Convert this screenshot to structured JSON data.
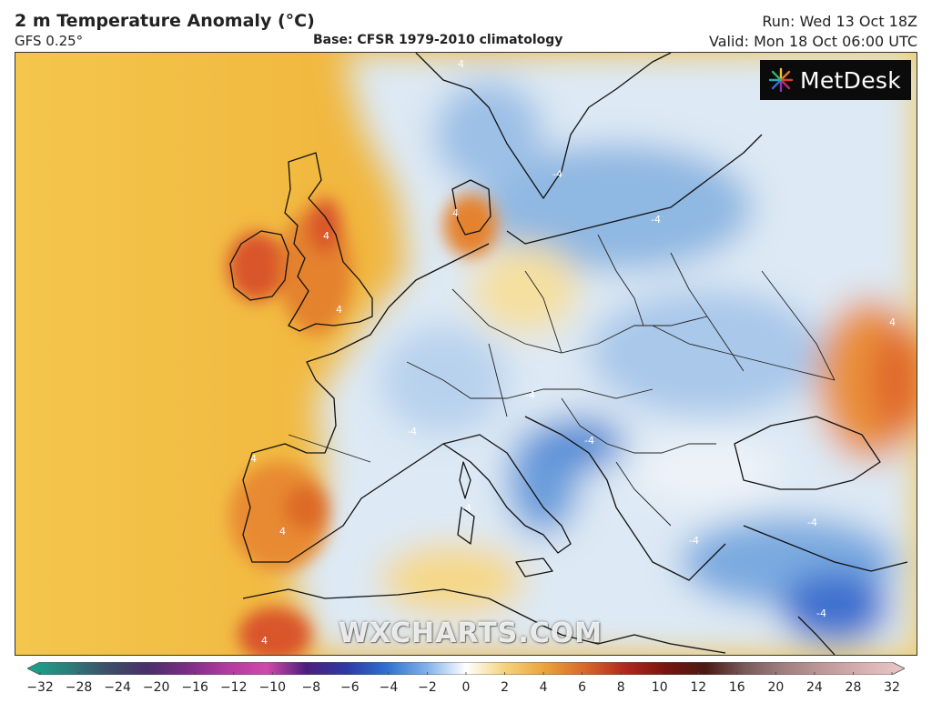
{
  "header": {
    "title": "2 m Temperature Anomaly (°C)",
    "model": "GFS 0.25°",
    "base": "Base: CFSR 1979-2010 climatology",
    "run": "Run: Wed 13 Oct 18Z",
    "valid": "Valid: Mon 18 Oct 06:00 UTC"
  },
  "logo": {
    "text": "MetDesk",
    "icon": "sunburst-logo-icon"
  },
  "watermark": "WXCHARTS.COM",
  "colorbar": {
    "ticks": [
      "−32",
      "−28",
      "−24",
      "−20",
      "−16",
      "−12",
      "−10",
      "−8",
      "−6",
      "−4",
      "−2",
      "0",
      "2",
      "4",
      "6",
      "8",
      "10",
      "12",
      "16",
      "20",
      "24",
      "28",
      "32"
    ],
    "colors": [
      "#1aa68c",
      "#2b7f7a",
      "#3c5068",
      "#4a2f6a",
      "#7a2d84",
      "#b23aa0",
      "#d04aa8",
      "#4b1e7e",
      "#2d3aa6",
      "#2f6fd0",
      "#7fb0e8",
      "#ffffff",
      "#f4d27a",
      "#e9a23a",
      "#d9662a",
      "#b0281e",
      "#7a1410",
      "#4a1a14",
      "#7a5a5a",
      "#a08080",
      "#c09a9a",
      "#d8b2b2",
      "#e8c8c8"
    ]
  },
  "map": {
    "region": "Europe",
    "contour_labels": [
      "4",
      "4",
      "4",
      "-4",
      "-4",
      "-4",
      "-4",
      "-4",
      "4",
      "4",
      "4",
      "4",
      "4",
      "-4",
      "-4",
      "-4",
      "-4"
    ],
    "colors": {
      "ocean_warm": "#f2c24a",
      "land_cool": "#dbe8f4",
      "cold_anomaly": "#5a93d6",
      "hot_anomaly": "#e0692a",
      "coastline": "#111111"
    }
  }
}
